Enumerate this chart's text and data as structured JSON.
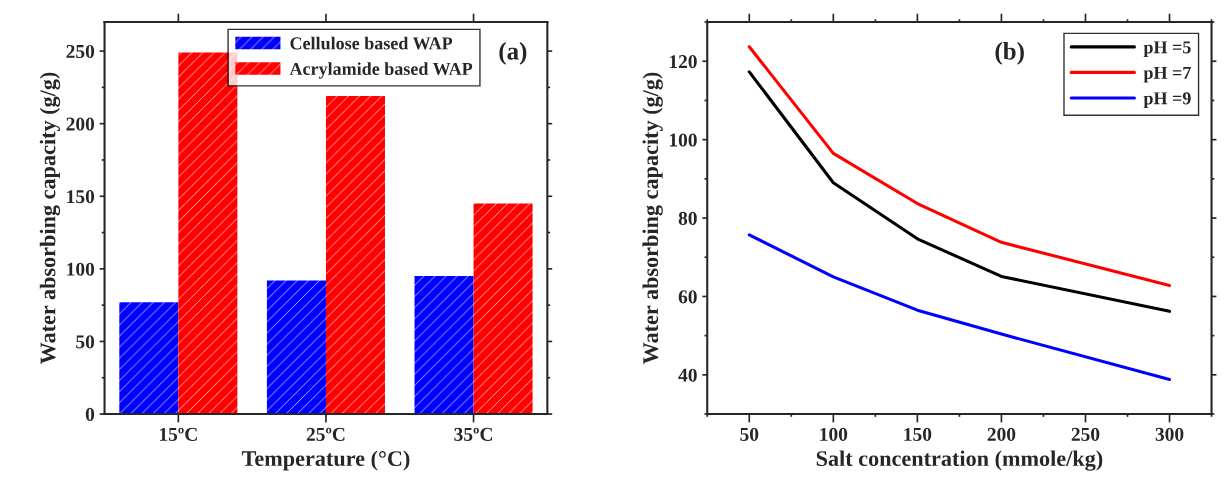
{
  "chart_data": [
    {
      "type": "bar",
      "categories": [
        "15ºC",
        "25ºC",
        "35ºC"
      ],
      "xlabel": "Temperature (°C)",
      "ylabel": "Water absorbing capacity (g/g)",
      "ylim": [
        0,
        270
      ],
      "yticks": [
        0,
        50,
        100,
        150,
        200,
        250
      ],
      "legend": "top right",
      "grid": false,
      "annotations": [
        "(a)"
      ],
      "series": [
        {
          "name": "Cellulose based WAP",
          "color": "#0000ff",
          "values": [
            77,
            92,
            95
          ]
        },
        {
          "name": "Acrylamide based WAP",
          "color": "#ff0000",
          "values": [
            249,
            219,
            145
          ]
        }
      ]
    },
    {
      "type": "line",
      "x": [
        50,
        100,
        150,
        200,
        300
      ],
      "xlabel": "Salt concentration (mmole/kg)",
      "ylabel": "Water absorbing capacity (g/g)",
      "xlim": [
        25,
        325
      ],
      "xticks": [
        50,
        100,
        150,
        200,
        250,
        300
      ],
      "ylim": [
        30,
        130
      ],
      "yticks": [
        40,
        60,
        80,
        100,
        120
      ],
      "legend": "top right",
      "grid": false,
      "marker": "none",
      "line_style": "solid",
      "annotations": [
        "(b)"
      ],
      "series": [
        {
          "name": "pH =5",
          "color": "#000000",
          "values": [
            117.3,
            89,
            74.7,
            65.1,
            56.2
          ]
        },
        {
          "name": "pH =7",
          "color": "#ff0000",
          "values": [
            123.7,
            96.5,
            83.7,
            73.8,
            62.8
          ]
        },
        {
          "name": "pH =9",
          "color": "#0000ff",
          "values": [
            75.7,
            65.0,
            56.5,
            50.4,
            38.8
          ]
        }
      ]
    }
  ]
}
